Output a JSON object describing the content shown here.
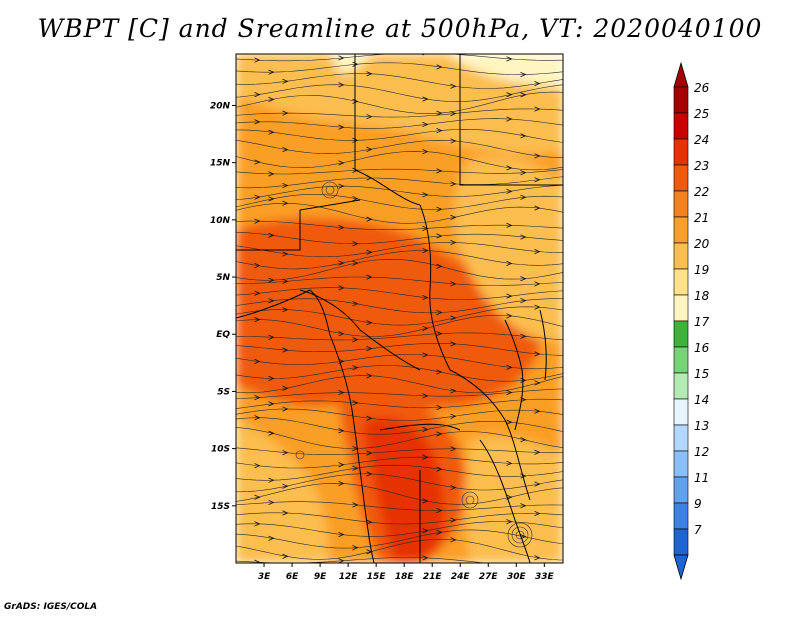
{
  "chart_data": {
    "type": "heatmap",
    "title": "WBPT [C] and Sreamline at 500hPa, VT: 2020040100",
    "variable": "WBPT [C]",
    "overlay": "Streamline",
    "level": "500hPa",
    "valid_time": "2020040100",
    "x_range": [
      0,
      35
    ],
    "y_range": [
      -20,
      24.5
    ],
    "x_ticks": [
      {
        "value": 3,
        "label": "3E"
      },
      {
        "value": 6,
        "label": "6E"
      },
      {
        "value": 9,
        "label": "9E"
      },
      {
        "value": 12,
        "label": "12E"
      },
      {
        "value": 15,
        "label": "15E"
      },
      {
        "value": 18,
        "label": "18E"
      },
      {
        "value": 21,
        "label": "21E"
      },
      {
        "value": 24,
        "label": "24E"
      },
      {
        "value": 27,
        "label": "27E"
      },
      {
        "value": 30,
        "label": "30E"
      },
      {
        "value": 33,
        "label": "33E"
      }
    ],
    "y_ticks": [
      {
        "value": 20,
        "label": "20N"
      },
      {
        "value": 15,
        "label": "15N"
      },
      {
        "value": 10,
        "label": "10N"
      },
      {
        "value": 5,
        "label": "5N"
      },
      {
        "value": 0,
        "label": "EQ"
      },
      {
        "value": -5,
        "label": "5S"
      },
      {
        "value": -10,
        "label": "10S"
      },
      {
        "value": -15,
        "label": "15S"
      }
    ],
    "colorbar": {
      "labels": [
        "26",
        "25",
        "24",
        "23",
        "22",
        "21",
        "20",
        "19",
        "18",
        "17",
        "16",
        "15",
        "14",
        "13",
        "12",
        "11",
        "9",
        "7"
      ],
      "colors": [
        "#a50000",
        "#c80000",
        "#e63200",
        "#f05a0a",
        "#f5821e",
        "#fa9f28",
        "#fbbe50",
        "#fde28a",
        "#fff5c0",
        "#3cb43c",
        "#78d278",
        "#b4ebb4",
        "#e6f5ff",
        "#b4d7ff",
        "#8cbefa",
        "#64a0f0",
        "#3c82e6",
        "#1e64d2"
      ],
      "max_arrow_color": "#a50000",
      "min_arrow_color": "#1e64d2"
    },
    "field_regions": [
      {
        "name": "background",
        "value": 20.5
      },
      {
        "name": "sahara-north",
        "value": 19
      },
      {
        "name": "green-north-east",
        "value": 17
      },
      {
        "name": "green-north-west",
        "value": 17.5
      },
      {
        "name": "congo-core",
        "value": 23
      },
      {
        "name": "central-band",
        "value": 22
      },
      {
        "name": "angola-tongue",
        "value": 22
      },
      {
        "name": "angola-core",
        "value": 23.5
      },
      {
        "name": "east-africa",
        "value": 19.5
      },
      {
        "name": "southwest-atlantic",
        "value": 19.5
      },
      {
        "name": "southeast",
        "value": 19
      }
    ]
  },
  "footer": "GrADS: IGES/COLA"
}
